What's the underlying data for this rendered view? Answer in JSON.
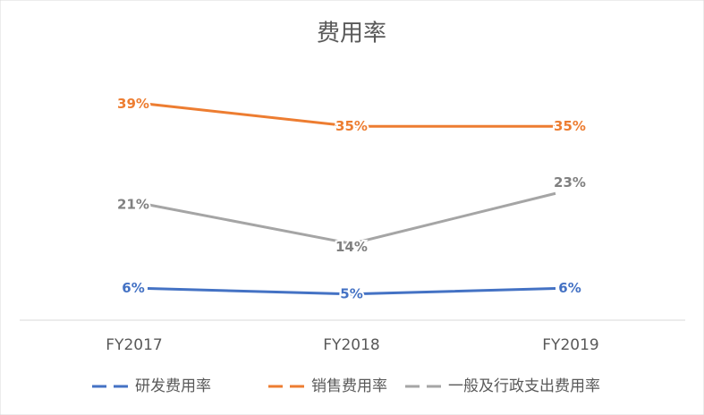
{
  "chart_data": {
    "type": "line",
    "title": "费用率",
    "categories": [
      "FY2017",
      "FY2018",
      "FY2019"
    ],
    "series": [
      {
        "name": "研发费用率",
        "color": "#4472c4",
        "values": [
          6,
          5,
          6
        ],
        "value_labels": [
          "6%",
          "5%",
          "6%"
        ]
      },
      {
        "name": "销售费用率",
        "color": "#ed7d31",
        "values": [
          39,
          35,
          35
        ],
        "value_labels": [
          "39%",
          "35%",
          "35%"
        ]
      },
      {
        "name": "一般及行政支出费用率",
        "color": "#a5a5a5",
        "values": [
          21,
          14,
          23
        ],
        "value_labels": [
          "21%",
          "14%",
          "23%"
        ]
      }
    ]
  }
}
